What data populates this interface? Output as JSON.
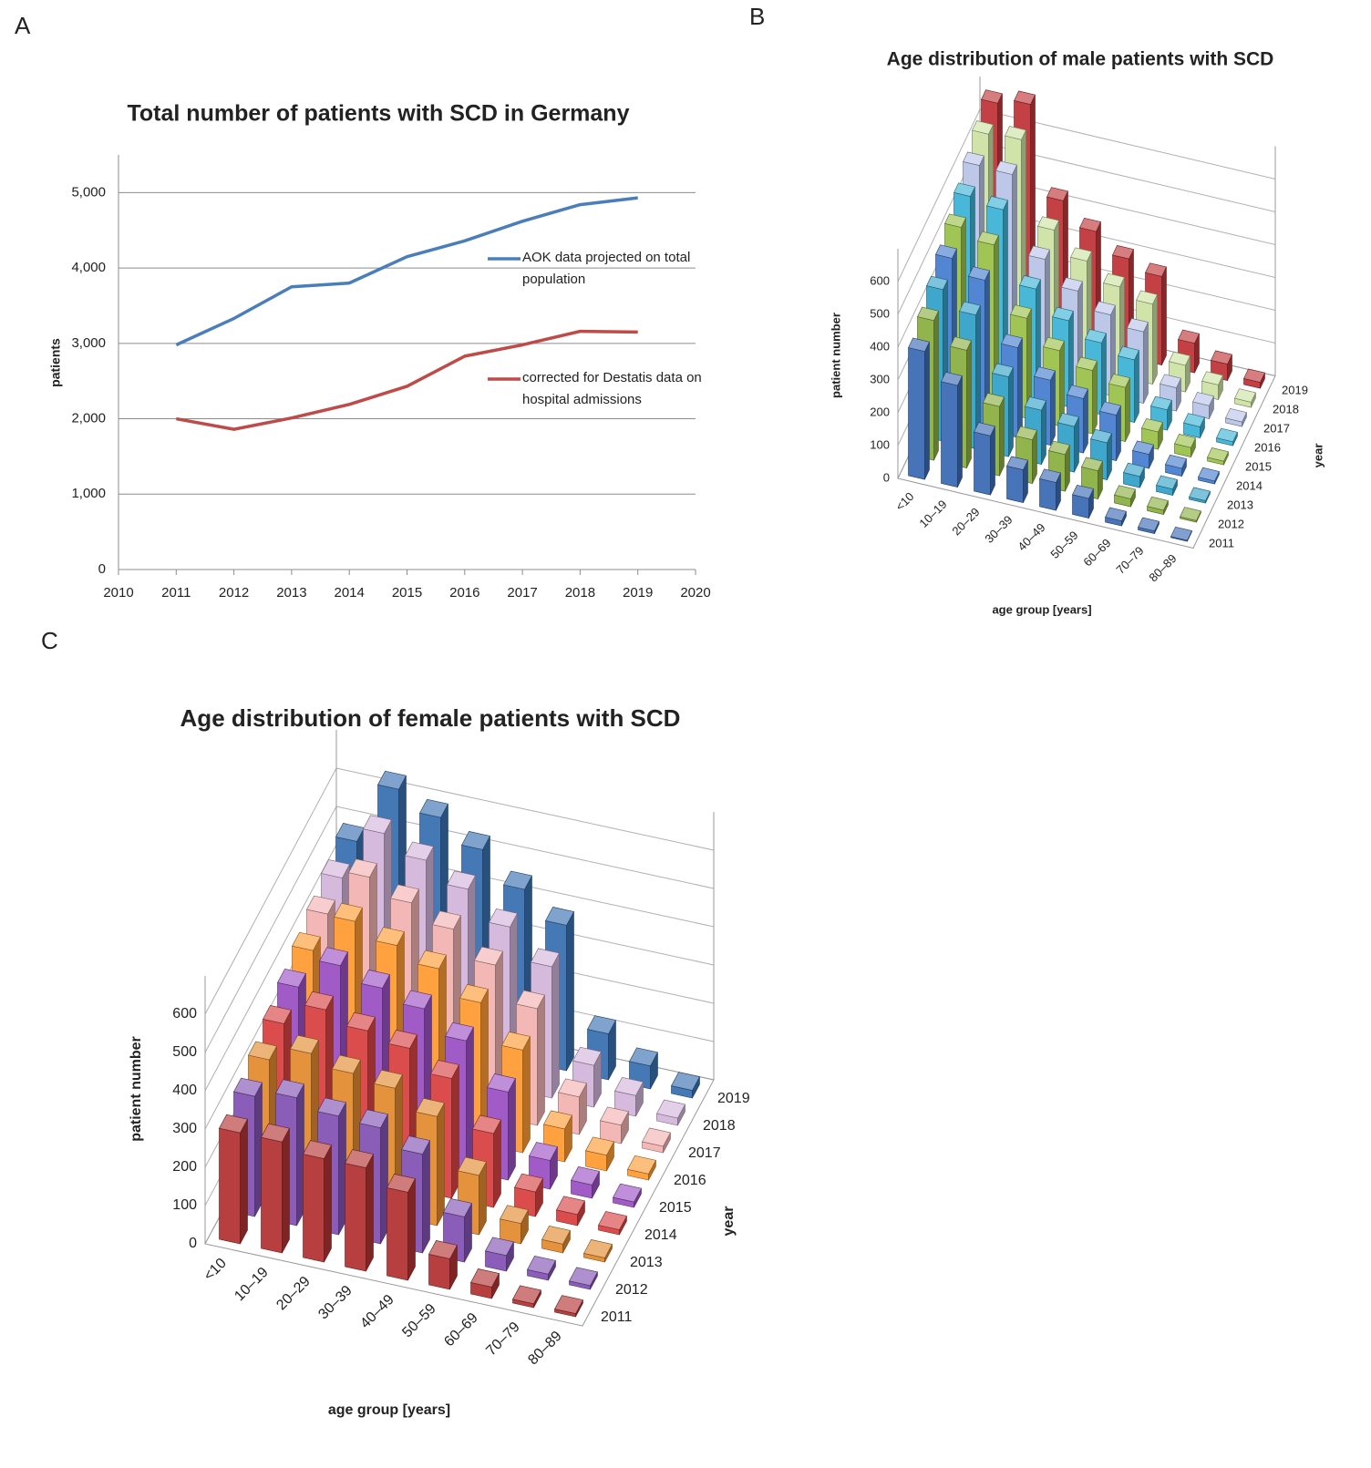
{
  "chart_data": [
    {
      "panel": "A",
      "type": "line",
      "title": "Total number of patients with SCD in Germany",
      "ylabel": "patients",
      "x": [
        2011,
        2012,
        2013,
        2014,
        2015,
        2016,
        2017,
        2018,
        2019
      ],
      "xlim": [
        2010,
        2020
      ],
      "xticks": [
        2010,
        2011,
        2012,
        2013,
        2014,
        2015,
        2016,
        2017,
        2018,
        2019,
        2020
      ],
      "ylim": [
        0,
        5500
      ],
      "yticks": [
        0,
        {
          "value": 1000,
          "label": "1,000"
        },
        {
          "value": 2000,
          "label": "2,000"
        },
        {
          "value": 3000,
          "label": "3,000"
        },
        {
          "value": 4000,
          "label": "4,000"
        },
        {
          "value": 5000,
          "label": "5,000"
        }
      ],
      "grid": true,
      "series": [
        {
          "name": "AOK data projected on total population",
          "color": "#4a7ebb",
          "values": [
            2980,
            3330,
            3750,
            3800,
            4150,
            4360,
            4620,
            4840,
            4930
          ]
        },
        {
          "name": "corrected for Destatis data on hospital admissions",
          "color": "#be4b48",
          "values": [
            2000,
            1860,
            2010,
            2190,
            2430,
            2830,
            2980,
            3160,
            3150
          ]
        }
      ]
    },
    {
      "panel": "B",
      "type": "bar3d",
      "title": "Age distribution of male patients with SCD",
      "ylabel": "patient number",
      "xlabel": "age group [years]",
      "zlabel": "year",
      "categories": [
        "<10",
        "10–19",
        "20–29",
        "30–39",
        "40–49",
        "50–59",
        "60–69",
        "70–79",
        "80–89"
      ],
      "ylim": [
        0,
        700
      ],
      "yticks": [
        0,
        100,
        200,
        300,
        400,
        500,
        600
      ],
      "series": [
        {
          "name": "2011",
          "color": "#3d6db5",
          "values": [
            390,
            310,
            180,
            100,
            85,
            60,
            15,
            8,
            3
          ]
        },
        {
          "name": "2012",
          "color": "#8cb043",
          "values": [
            426,
            359,
            211,
            133,
            112,
            86,
            24,
            13,
            5
          ]
        },
        {
          "name": "2013",
          "color": "#35a2c8",
          "values": [
            462,
            408,
            243,
            165,
            139,
            113,
            34,
            19,
            7
          ]
        },
        {
          "name": "2014",
          "color": "#4a80d0",
          "values": [
            499,
            456,
            274,
            198,
            166,
            139,
            43,
            24,
            9
          ]
        },
        {
          "name": "2015",
          "color": "#9cc24c",
          "values": [
            535,
            505,
            305,
            230,
            193,
            165,
            53,
            29,
            11
          ]
        },
        {
          "name": "2016",
          "color": "#3fb3d6",
          "values": [
            571,
            554,
            336,
            263,
            219,
            191,
            62,
            34,
            12
          ]
        },
        {
          "name": "2017",
          "color": "#b9c5e8",
          "values": [
            607,
            603,
            368,
            295,
            246,
            218,
            71,
            40,
            14
          ]
        },
        {
          "name": "2018",
          "color": "#cde3a4",
          "values": [
            644,
            651,
            399,
            328,
            273,
            244,
            81,
            45,
            16
          ]
        },
        {
          "name": "2019",
          "color": "#c0373a",
          "values": [
            680,
            700,
            430,
            360,
            300,
            270,
            90,
            50,
            18
          ]
        }
      ]
    },
    {
      "panel": "C",
      "type": "bar3d",
      "title": "Age distribution of female patients with SCD",
      "ylabel": "patient number",
      "xlabel": "age group [years]",
      "zlabel": "year",
      "categories": [
        "<10",
        "10–19",
        "20–29",
        "30–39",
        "40–49",
        "50–59",
        "60–69",
        "70–79",
        "80–89"
      ],
      "ylim": [
        0,
        700
      ],
      "yticks": [
        0,
        100,
        200,
        300,
        400,
        500,
        600
      ],
      "series": [
        {
          "name": "2011",
          "color": "#b33535",
          "values": [
            290,
            290,
            270,
            270,
            230,
            80,
            30,
            10,
            8
          ]
        },
        {
          "name": "2012",
          "color": "#8454b4",
          "values": [
            314,
            334,
            310,
            303,
            258,
            118,
            41,
            16,
            10
          ]
        },
        {
          "name": "2013",
          "color": "#e38c32",
          "values": [
            338,
            378,
            350,
            335,
            285,
            155,
            53,
            23,
            11
          ]
        },
        {
          "name": "2014",
          "color": "#d94444",
          "values": [
            361,
            421,
            390,
            368,
            313,
            193,
            64,
            29,
            13
          ]
        },
        {
          "name": "2015",
          "color": "#9c52c4",
          "values": [
            385,
            465,
            430,
            400,
            340,
            230,
            75,
            35,
            14
          ]
        },
        {
          "name": "2016",
          "color": "#ff9c35",
          "values": [
            409,
            509,
            470,
            433,
            368,
            268,
            86,
            41,
            16
          ]
        },
        {
          "name": "2017",
          "color": "#f2b4b2",
          "values": [
            433,
            553,
            510,
            465,
            395,
            305,
            98,
            48,
            17
          ]
        },
        {
          "name": "2018",
          "color": "#d4b6dc",
          "values": [
            456,
            596,
            550,
            498,
            423,
            343,
            109,
            54,
            19
          ]
        },
        {
          "name": "2019",
          "color": "#3b72b2",
          "values": [
            480,
            640,
            590,
            530,
            450,
            380,
            120,
            60,
            20
          ]
        }
      ]
    }
  ]
}
